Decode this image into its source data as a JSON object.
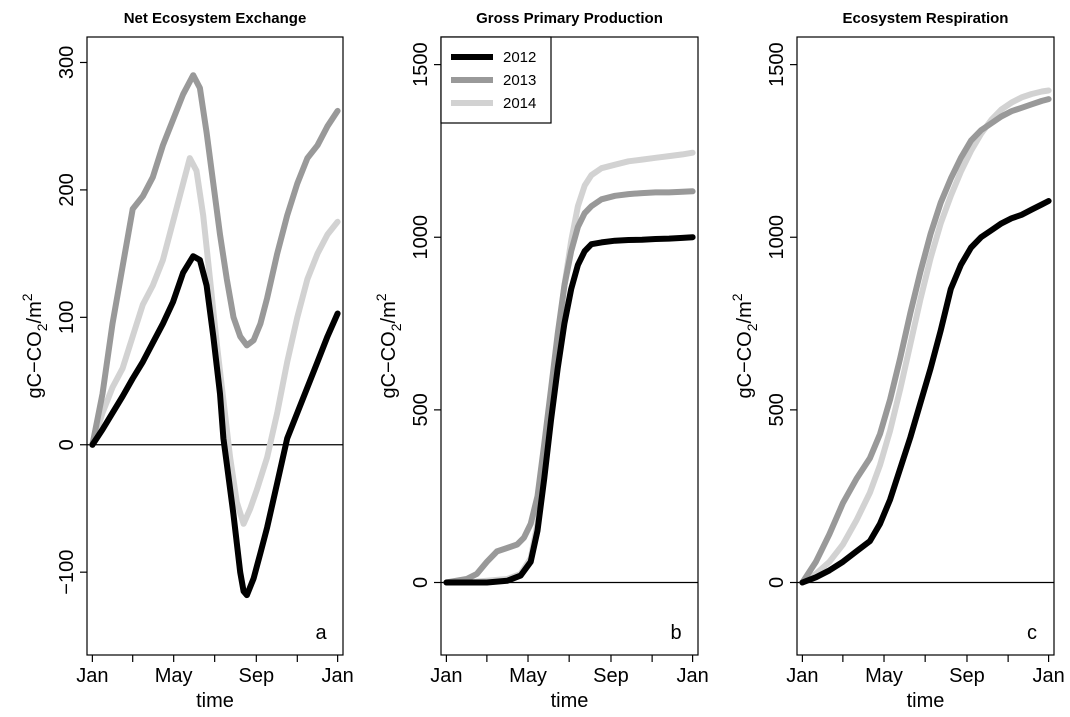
{
  "chart_data": [
    {
      "type": "line",
      "panel": "a",
      "title": "Net Ecosystem Exchange",
      "xlabel": "time",
      "ylabel": "gC-CO2/m2",
      "ylim": [
        -165,
        320
      ],
      "yticks": [
        -100,
        0,
        100,
        200,
        300
      ],
      "x_tick_labels": [
        "Jan",
        "May",
        "Sep",
        "Jan"
      ],
      "reference_line": 0,
      "series": [
        {
          "name": "2012",
          "color": "#000000",
          "x": [
            0,
            15,
            30,
            45,
            60,
            75,
            90,
            105,
            120,
            135,
            150,
            160,
            170,
            180,
            190,
            195,
            200,
            210,
            220,
            225,
            230,
            240,
            250,
            260,
            275,
            290,
            305,
            320,
            335,
            350,
            365
          ],
          "y": [
            0,
            12,
            25,
            38,
            52,
            65,
            80,
            95,
            112,
            135,
            148,
            145,
            125,
            85,
            40,
            5,
            -15,
            -55,
            -100,
            -115,
            -118,
            -105,
            -85,
            -65,
            -30,
            5,
            25,
            45,
            65,
            85,
            103
          ]
        },
        {
          "name": "2013",
          "color": "#999999",
          "x": [
            0,
            15,
            30,
            45,
            60,
            75,
            90,
            105,
            120,
            135,
            150,
            160,
            170,
            180,
            190,
            200,
            210,
            220,
            230,
            240,
            250,
            260,
            275,
            290,
            305,
            320,
            335,
            350,
            365
          ],
          "y": [
            0,
            40,
            95,
            140,
            185,
            195,
            210,
            235,
            255,
            275,
            290,
            280,
            245,
            205,
            165,
            130,
            100,
            85,
            78,
            82,
            95,
            115,
            150,
            180,
            205,
            225,
            235,
            250,
            262
          ]
        },
        {
          "name": "2014",
          "color": "#d2d2d2",
          "x": [
            0,
            15,
            30,
            45,
            60,
            75,
            90,
            105,
            120,
            135,
            145,
            155,
            165,
            175,
            185,
            195,
            205,
            215,
            225,
            235,
            245,
            260,
            275,
            290,
            305,
            320,
            335,
            350,
            365
          ],
          "y": [
            0,
            25,
            45,
            60,
            85,
            110,
            125,
            145,
            175,
            205,
            225,
            215,
            180,
            130,
            80,
            35,
            -10,
            -45,
            -62,
            -50,
            -35,
            -10,
            25,
            65,
            100,
            130,
            150,
            165,
            175
          ]
        }
      ]
    },
    {
      "type": "line",
      "panel": "b",
      "title": "Gross Primary Production",
      "xlabel": "time",
      "ylabel": "gC-CO2/m2",
      "ylim": [
        -210,
        1580
      ],
      "yticks": [
        0,
        500,
        1000,
        1500
      ],
      "x_tick_labels": [
        "Jan",
        "May",
        "Sep",
        "Jan"
      ],
      "reference_line": 0,
      "legend": {
        "position": "top-left",
        "entries": [
          "2012",
          "2013",
          "2014"
        ]
      },
      "series": [
        {
          "name": "2012",
          "color": "#000000",
          "x": [
            0,
            30,
            60,
            90,
            110,
            125,
            135,
            145,
            155,
            165,
            175,
            185,
            195,
            205,
            215,
            230,
            250,
            270,
            290,
            310,
            330,
            350,
            365
          ],
          "y": [
            0,
            0,
            0,
            5,
            20,
            60,
            150,
            300,
            470,
            620,
            750,
            850,
            920,
            960,
            980,
            985,
            990,
            992,
            993,
            995,
            996,
            998,
            1000
          ]
        },
        {
          "name": "2013",
          "color": "#999999",
          "x": [
            0,
            30,
            45,
            60,
            75,
            90,
            105,
            115,
            125,
            135,
            145,
            155,
            165,
            175,
            185,
            195,
            205,
            215,
            230,
            250,
            270,
            290,
            310,
            330,
            350,
            365
          ],
          "y": [
            0,
            10,
            25,
            60,
            90,
            100,
            110,
            130,
            170,
            250,
            400,
            560,
            720,
            860,
            960,
            1030,
            1070,
            1090,
            1110,
            1120,
            1125,
            1128,
            1130,
            1130,
            1132,
            1133
          ]
        },
        {
          "name": "2014",
          "color": "#d2d2d2",
          "x": [
            0,
            30,
            60,
            90,
            110,
            125,
            135,
            145,
            155,
            165,
            175,
            185,
            195,
            205,
            215,
            230,
            250,
            270,
            290,
            310,
            330,
            350,
            365
          ],
          "y": [
            0,
            0,
            5,
            10,
            25,
            70,
            170,
            330,
            520,
            700,
            860,
            990,
            1090,
            1150,
            1180,
            1200,
            1210,
            1220,
            1225,
            1230,
            1235,
            1240,
            1245
          ]
        }
      ]
    },
    {
      "type": "line",
      "panel": "c",
      "title": "Ecosystem Respiration",
      "xlabel": "time",
      "ylabel": "gC-CO2/m2",
      "ylim": [
        -210,
        1580
      ],
      "yticks": [
        0,
        500,
        1000,
        1500
      ],
      "x_tick_labels": [
        "Jan",
        "May",
        "Sep",
        "Jan"
      ],
      "reference_line": 0,
      "series": [
        {
          "name": "2012",
          "color": "#000000",
          "x": [
            0,
            20,
            40,
            60,
            80,
            100,
            115,
            130,
            145,
            160,
            175,
            190,
            205,
            220,
            235,
            250,
            265,
            280,
            295,
            310,
            325,
            340,
            355,
            365
          ],
          "y": [
            0,
            15,
            35,
            60,
            90,
            120,
            170,
            240,
            330,
            420,
            520,
            620,
            730,
            850,
            920,
            970,
            1000,
            1020,
            1040,
            1055,
            1065,
            1080,
            1095,
            1105
          ]
        },
        {
          "name": "2013",
          "color": "#999999",
          "x": [
            0,
            20,
            40,
            60,
            80,
            100,
            115,
            130,
            145,
            160,
            175,
            190,
            205,
            220,
            235,
            250,
            265,
            280,
            295,
            310,
            325,
            340,
            355,
            365
          ],
          "y": [
            0,
            60,
            140,
            230,
            300,
            360,
            430,
            530,
            650,
            780,
            900,
            1010,
            1100,
            1170,
            1230,
            1280,
            1310,
            1330,
            1350,
            1365,
            1375,
            1385,
            1395,
            1400
          ]
        },
        {
          "name": "2014",
          "color": "#d2d2d2",
          "x": [
            0,
            20,
            40,
            60,
            80,
            100,
            115,
            130,
            145,
            160,
            175,
            190,
            205,
            220,
            235,
            250,
            265,
            280,
            295,
            310,
            325,
            340,
            355,
            365
          ],
          "y": [
            0,
            25,
            60,
            110,
            180,
            260,
            340,
            440,
            560,
            690,
            820,
            940,
            1040,
            1120,
            1190,
            1250,
            1300,
            1340,
            1370,
            1390,
            1405,
            1415,
            1422,
            1425
          ]
        }
      ]
    }
  ]
}
